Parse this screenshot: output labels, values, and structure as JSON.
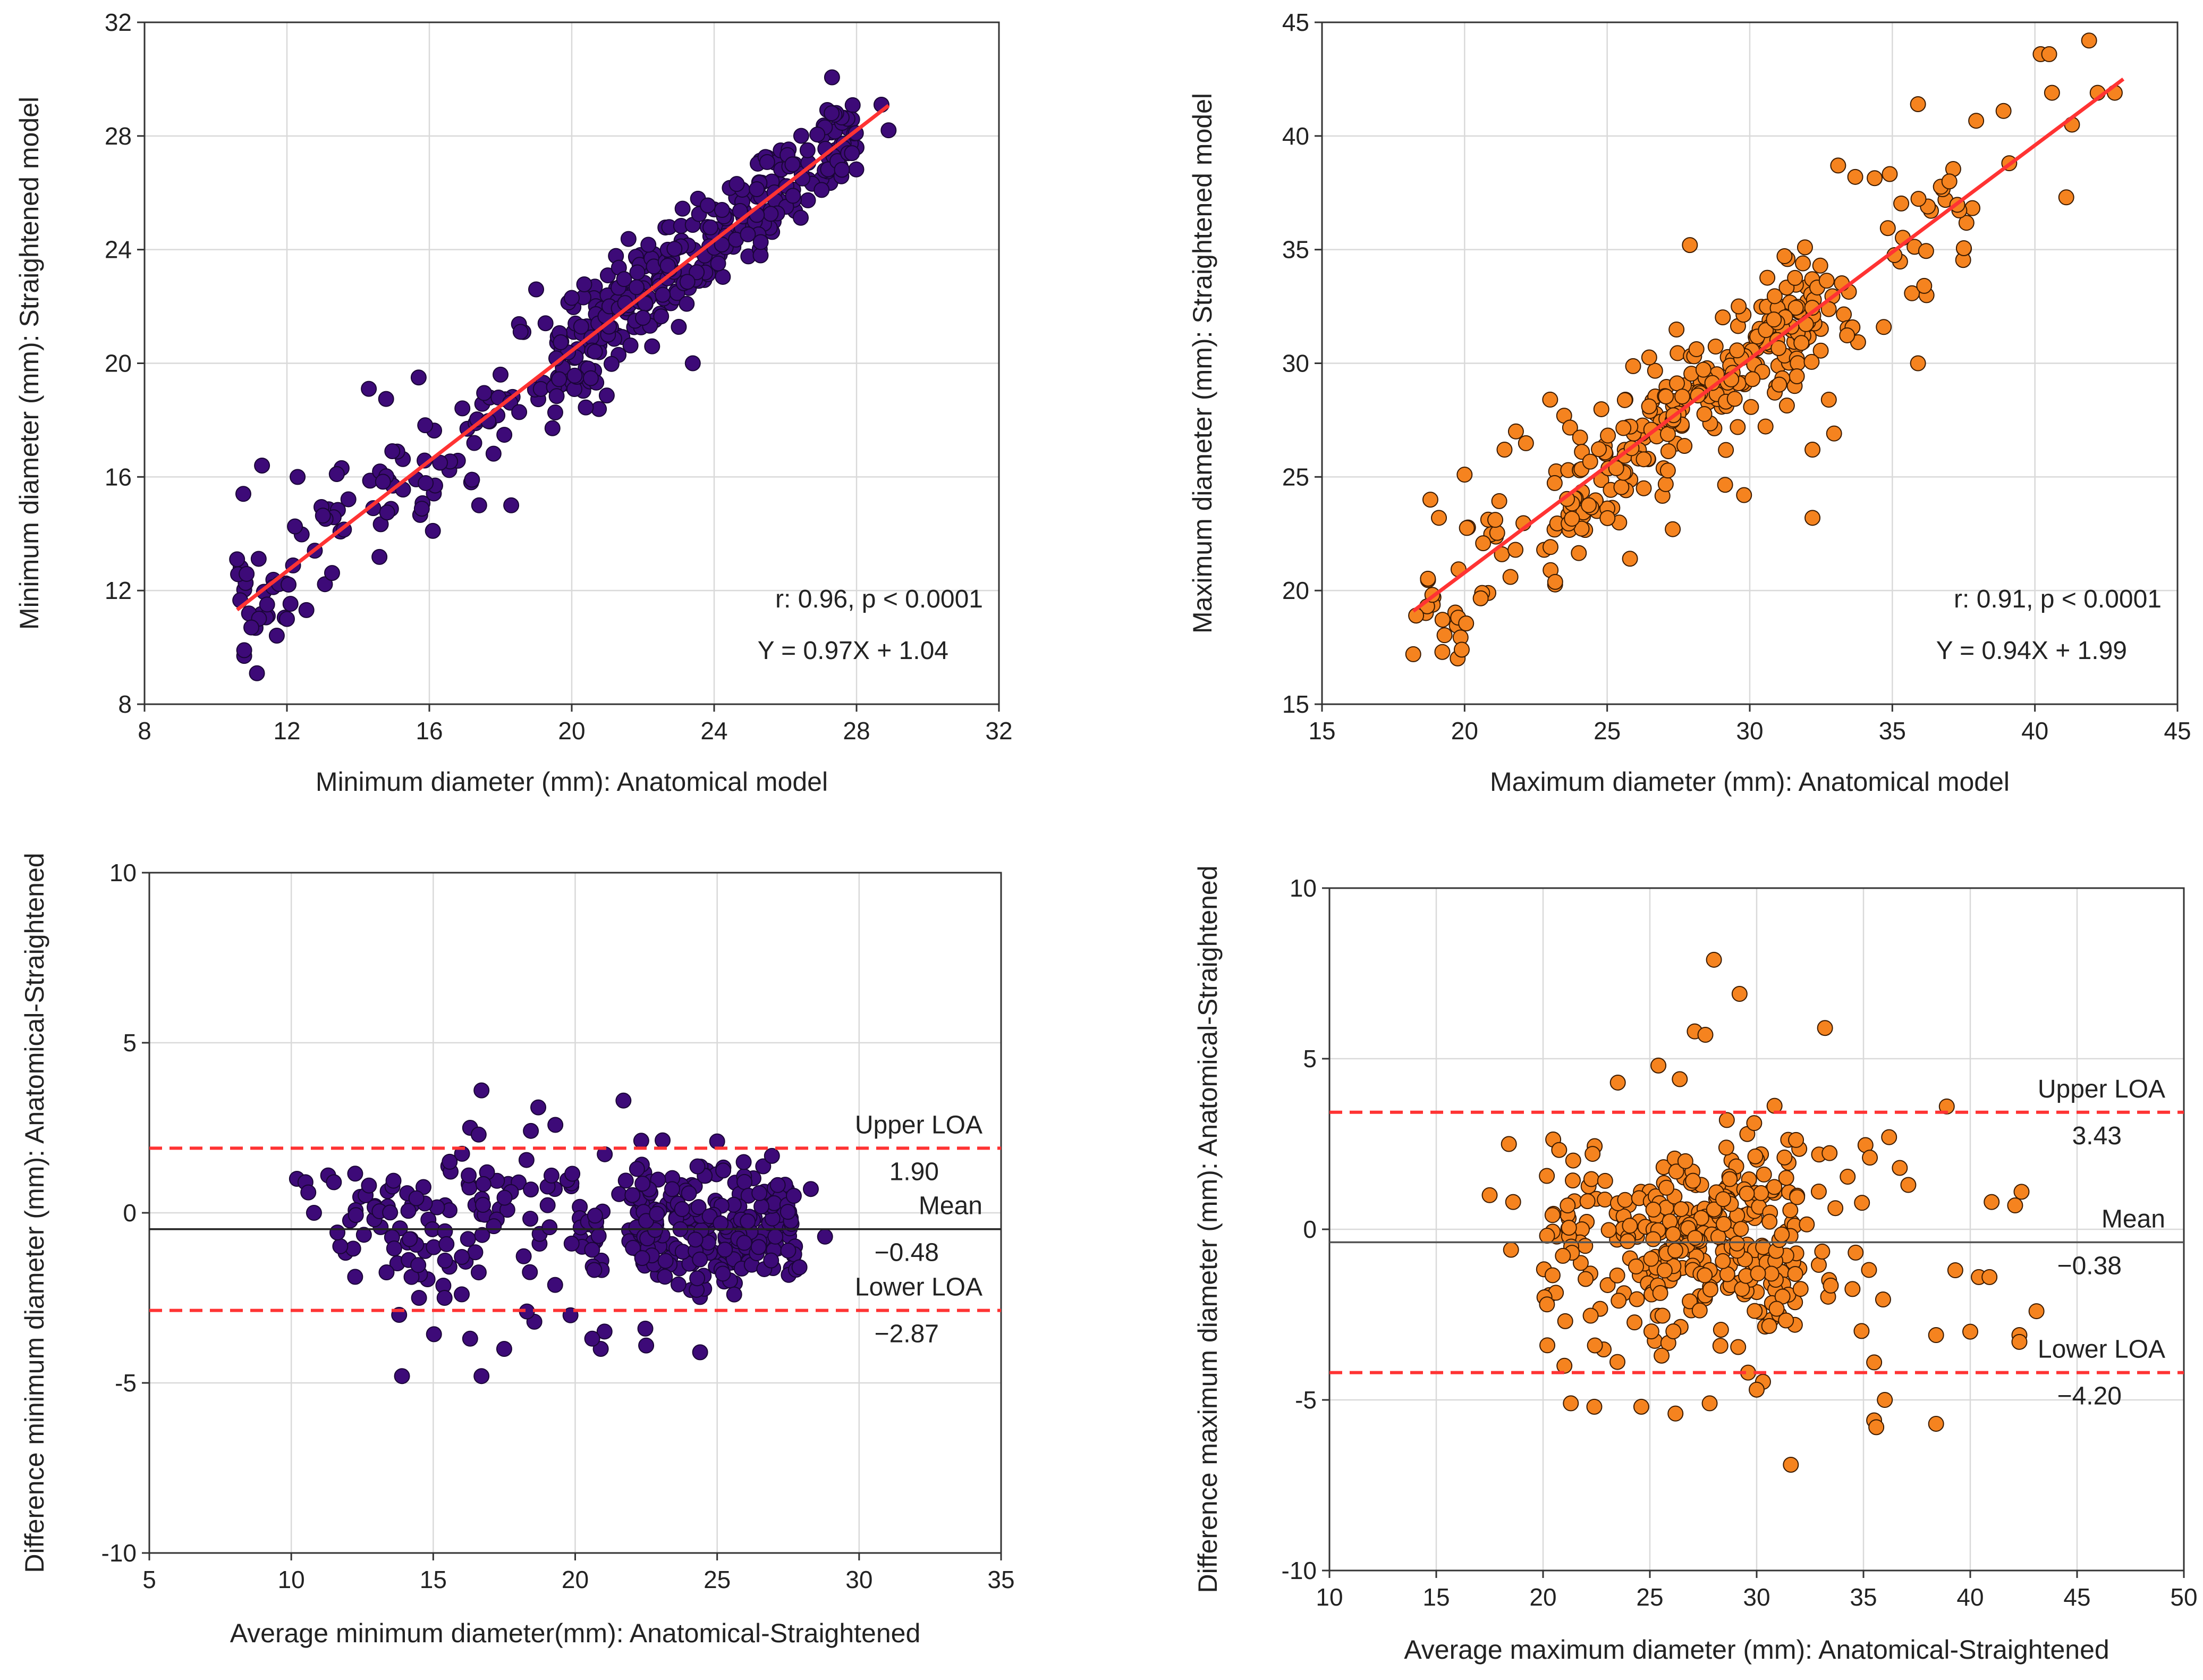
{
  "chart_data": [
    {
      "id": "min-scatter",
      "type": "scatter",
      "xlabel": "Minimum diameter (mm): Anatomical model",
      "ylabel": "Minimum diameter (mm): Straightened model",
      "xlim": [
        8,
        32
      ],
      "ylim": [
        8,
        32
      ],
      "xticks": [
        8,
        12,
        16,
        20,
        24,
        28,
        32
      ],
      "yticks": [
        8,
        12,
        16,
        20,
        24,
        28,
        32
      ],
      "grid": true,
      "marker_color": "#3d0a78",
      "marker_edge": "#1a0536",
      "fit_line_color": "#ff3333",
      "fit": {
        "slope": 0.97,
        "intercept": 1.04,
        "x_range": [
          10.6,
          28.9
        ]
      },
      "seed": 11,
      "cluster_sizes": [
        45,
        55,
        130,
        195
      ],
      "annotations": [
        {
          "text": "r: 0.96, p < 0.0001",
          "pos": "lower-right-upper"
        },
        {
          "text": "Y = 0.97X + 1.04",
          "pos": "lower-right-lower"
        }
      ],
      "points": [
        [
          10.8,
          9.7
        ],
        [
          10.8,
          9.9
        ],
        [
          11.0,
          10.7
        ],
        [
          10.6,
          13.1
        ],
        [
          11.3,
          16.4
        ],
        [
          12.0,
          11.0
        ],
        [
          14.3,
          19.1
        ],
        [
          15.7,
          19.5
        ],
        [
          12.3,
          16.0
        ],
        [
          13.4,
          16.1
        ],
        [
          16.1,
          14.1
        ],
        [
          16.3,
          16.5
        ],
        [
          17.2,
          15.9
        ],
        [
          17.4,
          15.0
        ],
        [
          18.3,
          15.0
        ],
        [
          18.0,
          19.6
        ],
        [
          19.0,
          22.6
        ],
        [
          20.0,
          22.3
        ],
        [
          22.0,
          21.6
        ],
        [
          23.4,
          20.0
        ],
        [
          26.2,
          27.0
        ],
        [
          27.3,
          28.8
        ],
        [
          28.7,
          29.1
        ],
        [
          28.9,
          28.2
        ]
      ]
    },
    {
      "id": "max-scatter",
      "type": "scatter",
      "xlabel": "Maximum diameter (mm): Anatomical model",
      "ylabel": "Maximum diameter (mm): Straightened model",
      "xlim": [
        15,
        45
      ],
      "ylim": [
        15,
        45
      ],
      "xticks": [
        15,
        20,
        25,
        30,
        35,
        40,
        45
      ],
      "yticks": [
        15,
        20,
        25,
        30,
        35,
        40,
        45
      ],
      "grid": true,
      "marker_color": "#f5831f",
      "marker_edge": "#3a1a00",
      "fit_line_color": "#ff3333",
      "fit": {
        "slope": 0.94,
        "intercept": 1.99,
        "x_range": [
          18.2,
          43.1
        ]
      },
      "seed": 23,
      "cluster_sizes": [
        45,
        85,
        175,
        40
      ],
      "annotations": [
        {
          "text": "r: 0.91, p < 0.0001",
          "pos": "lower-right-upper"
        },
        {
          "text": "Y = 0.94X + 1.99",
          "pos": "lower-right-lower"
        }
      ],
      "points": [
        [
          18.2,
          17.2
        ],
        [
          19.9,
          17.4
        ],
        [
          18.3,
          18.9
        ],
        [
          18.8,
          24.0
        ],
        [
          19.1,
          23.2
        ],
        [
          20.0,
          25.1
        ],
        [
          21.4,
          26.2
        ],
        [
          21.8,
          27.0
        ],
        [
          23.0,
          28.4
        ],
        [
          27.9,
          35.2
        ],
        [
          25.8,
          21.4
        ],
        [
          27.3,
          22.7
        ],
        [
          29.8,
          24.2
        ],
        [
          32.2,
          23.2
        ],
        [
          32.2,
          26.2
        ],
        [
          33.1,
          38.7
        ],
        [
          33.7,
          38.2
        ],
        [
          35.9,
          41.4
        ],
        [
          35.9,
          30.0
        ],
        [
          37.0,
          38.0
        ],
        [
          38.9,
          41.1
        ],
        [
          39.1,
          38.8
        ],
        [
          40.2,
          43.6
        ],
        [
          40.5,
          43.6
        ],
        [
          40.6,
          41.9
        ],
        [
          41.1,
          37.3
        ],
        [
          41.3,
          40.5
        ],
        [
          41.9,
          44.2
        ],
        [
          42.2,
          41.9
        ],
        [
          42.8,
          41.9
        ]
      ]
    },
    {
      "id": "min-bland-altman",
      "type": "scatter",
      "xlabel": "Average minimum diameter(mm): Anatomical-Straightened",
      "ylabel": "Difference minimum diameter (mm): Anatomical-Straightened",
      "xlim": [
        5,
        35
      ],
      "ylim": [
        -10,
        10
      ],
      "xticks": [
        5,
        10,
        15,
        20,
        25,
        30,
        35
      ],
      "yticks": [
        -10,
        -5,
        0,
        5,
        10
      ],
      "grid": true,
      "marker_color": "#3d0a78",
      "marker_edge": "#1a0536",
      "hlines": [
        {
          "label": "Upper LOA",
          "value": 1.9,
          "value_text": "1.90",
          "style": "dashed",
          "color": "#ff3333"
        },
        {
          "label": "Mean",
          "value": -0.48,
          "value_text": "−0.48",
          "style": "solid",
          "color": "#222222"
        },
        {
          "label": "Lower LOA",
          "value": -2.87,
          "value_text": "−2.87",
          "style": "dashed",
          "color": "#ff3333"
        }
      ],
      "seed": 37,
      "points": [
        [
          10.2,
          1.0
        ],
        [
          10.5,
          0.9
        ],
        [
          10.6,
          0.6
        ],
        [
          11.3,
          1.1
        ],
        [
          11.5,
          0.9
        ],
        [
          10.8,
          0.0
        ],
        [
          13.9,
          -4.8
        ],
        [
          16.7,
          -4.8
        ],
        [
          17.5,
          -4.0
        ],
        [
          16.7,
          3.6
        ],
        [
          16.3,
          2.5
        ],
        [
          16.6,
          2.3
        ],
        [
          18.7,
          3.1
        ],
        [
          21.7,
          3.3
        ],
        [
          25.0,
          2.1
        ],
        [
          24.4,
          -4.1
        ],
        [
          22.5,
          -3.9
        ],
        [
          20.9,
          -4.0
        ],
        [
          20.6,
          -3.7
        ],
        [
          16.3,
          -3.7
        ],
        [
          14.5,
          -2.5
        ],
        [
          13.8,
          -3.0
        ],
        [
          15.4,
          -2.5
        ],
        [
          18.3,
          -2.9
        ],
        [
          25.6,
          -2.4
        ],
        [
          26.9,
          -1.4
        ],
        [
          27.9,
          -1.6
        ],
        [
          28.8,
          -0.7
        ],
        [
          28.3,
          0.7
        ],
        [
          27.7,
          0.5
        ]
      ]
    },
    {
      "id": "max-bland-altman",
      "type": "scatter",
      "xlabel": "Average maximum diameter (mm): Anatomical-Straightened",
      "ylabel": "Difference maximum diameter (mm): Anatomical-Straightened",
      "xlim": [
        10,
        50
      ],
      "ylim": [
        -10,
        10
      ],
      "xticks": [
        10,
        15,
        20,
        25,
        30,
        35,
        40,
        45,
        50
      ],
      "yticks": [
        -10,
        -5,
        0,
        5,
        10
      ],
      "grid": true,
      "marker_color": "#f5831f",
      "marker_edge": "#3a1a00",
      "hlines": [
        {
          "label": "Upper LOA",
          "value": 3.43,
          "value_text": "3.43",
          "style": "dashed",
          "color": "#ff3333"
        },
        {
          "label": "Mean",
          "value": -0.38,
          "value_text": "−0.38",
          "style": "solid",
          "color": "#555555"
        },
        {
          "label": "Lower LOA",
          "value": -4.2,
          "value_text": "−4.20",
          "style": "dashed",
          "color": "#ff3333"
        }
      ],
      "seed": 53,
      "points": [
        [
          28.0,
          7.9
        ],
        [
          29.2,
          6.9
        ],
        [
          27.1,
          5.8
        ],
        [
          27.6,
          5.7
        ],
        [
          26.4,
          4.4
        ],
        [
          25.4,
          4.8
        ],
        [
          23.5,
          4.3
        ],
        [
          33.2,
          5.9
        ],
        [
          18.4,
          2.5
        ],
        [
          18.5,
          -0.6
        ],
        [
          17.5,
          1.0
        ],
        [
          18.6,
          0.8
        ],
        [
          20.2,
          -3.4
        ],
        [
          21.0,
          -4.0
        ],
        [
          21.3,
          -5.1
        ],
        [
          22.4,
          -5.2
        ],
        [
          24.6,
          -5.2
        ],
        [
          26.2,
          -5.4
        ],
        [
          27.8,
          -5.1
        ],
        [
          30.0,
          -4.7
        ],
        [
          29.6,
          -4.2
        ],
        [
          31.6,
          -6.9
        ],
        [
          35.5,
          -5.6
        ],
        [
          35.6,
          -5.8
        ],
        [
          36.0,
          -5.0
        ],
        [
          38.4,
          -5.7
        ],
        [
          38.4,
          -3.1
        ],
        [
          40.0,
          -3.0
        ],
        [
          42.3,
          -3.1
        ],
        [
          42.3,
          -3.3
        ],
        [
          43.1,
          -2.4
        ],
        [
          40.4,
          -1.4
        ],
        [
          40.9,
          -1.4
        ],
        [
          41.0,
          0.8
        ],
        [
          42.1,
          0.7
        ],
        [
          42.4,
          1.1
        ],
        [
          39.3,
          -1.2
        ],
        [
          38.9,
          3.6
        ],
        [
          36.7,
          1.8
        ],
        [
          37.1,
          1.3
        ],
        [
          36.2,
          2.7
        ],
        [
          35.3,
          2.1
        ]
      ]
    }
  ]
}
